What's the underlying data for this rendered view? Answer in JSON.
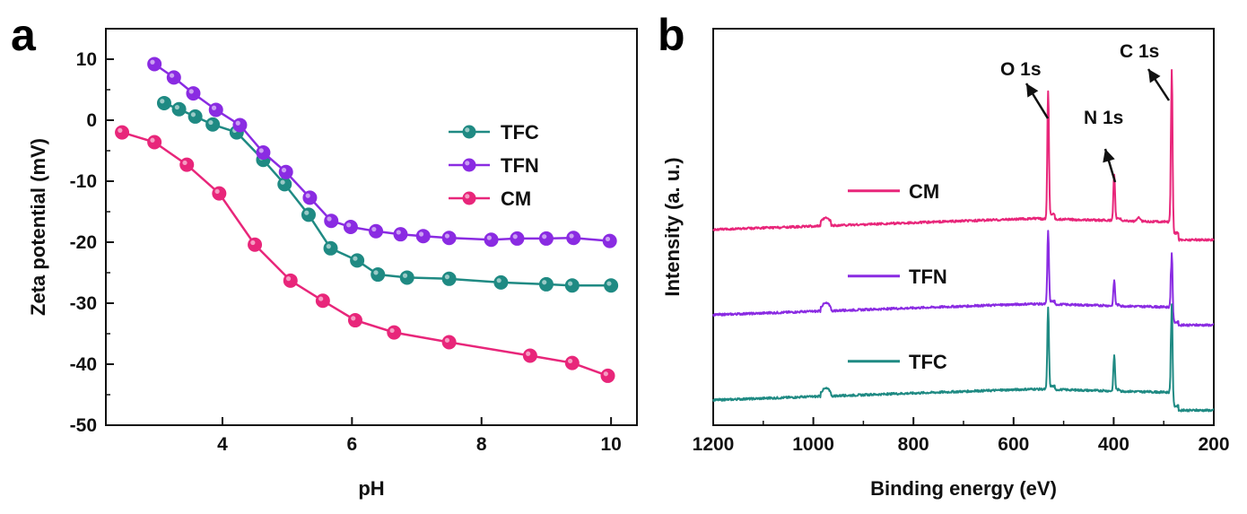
{
  "panels": {
    "a": "a",
    "b": "b"
  },
  "colors": {
    "TFC": "#1f8a83",
    "TFN": "#8a2be2",
    "CM": "#e8267a"
  },
  "chart_data": [
    {
      "type": "line",
      "panel": "a",
      "title": "",
      "xlabel": "pH",
      "ylabel": "Zeta potential (mV)",
      "xlim": [
        2.2,
        10.4
      ],
      "ylim": [
        -50,
        15
      ],
      "xticks": [
        4,
        6,
        8,
        10
      ],
      "yticks": [
        10,
        0,
        -10,
        -20,
        -30,
        -40,
        -50
      ],
      "legend": "right-middle",
      "series": [
        {
          "name": "TFC",
          "x": [
            3.1,
            3.33,
            3.58,
            3.85,
            4.22,
            4.63,
            4.96,
            5.33,
            5.67,
            6.08,
            6.4,
            6.85,
            7.5,
            8.3,
            9.0,
            9.4,
            10.0
          ],
          "y": [
            2.8,
            1.8,
            0.6,
            -0.7,
            -2.0,
            -6.5,
            -10.5,
            -15.5,
            -21.0,
            -23.0,
            -25.3,
            -25.8,
            -26.0,
            -26.6,
            -26.9,
            -27.1,
            -27.1
          ]
        },
        {
          "name": "TFN",
          "x": [
            2.95,
            3.25,
            3.55,
            3.9,
            4.27,
            4.63,
            4.98,
            5.35,
            5.68,
            5.98,
            6.37,
            6.75,
            7.1,
            7.5,
            8.15,
            8.55,
            9.0,
            9.42,
            9.98
          ],
          "y": [
            9.2,
            7.0,
            4.4,
            1.7,
            -0.8,
            -5.3,
            -8.5,
            -12.7,
            -16.5,
            -17.5,
            -18.2,
            -18.7,
            -19.0,
            -19.3,
            -19.6,
            -19.4,
            -19.4,
            -19.3,
            -19.8
          ]
        },
        {
          "name": "CM",
          "x": [
            2.45,
            2.95,
            3.45,
            3.95,
            4.5,
            5.05,
            5.55,
            6.05,
            6.65,
            7.5,
            8.75,
            9.4,
            9.95
          ],
          "y": [
            -2.0,
            -3.6,
            -7.3,
            -12.0,
            -20.4,
            -26.3,
            -29.6,
            -32.8,
            -34.8,
            -36.4,
            -38.6,
            -39.8,
            -41.9
          ]
        }
      ]
    },
    {
      "type": "line",
      "panel": "b",
      "title": "",
      "xlabel": "Binding energy (eV)",
      "ylabel": "Intensity (a. u.)",
      "xlim": [
        1200,
        200
      ],
      "xticks": [
        1200,
        1000,
        800,
        600,
        400,
        200
      ],
      "y_units": "arbitrary (intensity, stacked)",
      "legend": "inline labels left of each spectrum",
      "series": [
        {
          "name": "CM",
          "offset": 2.0,
          "baseline_at_1200": 0.0,
          "baseline_end": -0.12,
          "peaks": [
            {
              "x": 975,
              "h": 0.09
            },
            {
              "x": 531,
              "h": 1.5
            },
            {
              "x": 399,
              "h": 0.55
            },
            {
              "x": 350,
              "h": 0.05
            },
            {
              "x": 284,
              "h": 2.0
            }
          ]
        },
        {
          "name": "TFN",
          "offset": 1.0,
          "baseline_at_1200": 0.0,
          "baseline_end": -0.12,
          "peaks": [
            {
              "x": 975,
              "h": 0.09
            },
            {
              "x": 531,
              "h": 0.85
            },
            {
              "x": 399,
              "h": 0.3
            },
            {
              "x": 284,
              "h": 0.85
            }
          ]
        },
        {
          "name": "TFC",
          "offset": 0.0,
          "baseline_at_1200": 0.0,
          "baseline_end": -0.12,
          "peaks": [
            {
              "x": 975,
              "h": 0.09
            },
            {
              "x": 531,
              "h": 0.95
            },
            {
              "x": 399,
              "h": 0.42
            },
            {
              "x": 284,
              "h": 1.25
            }
          ]
        }
      ],
      "annotations": [
        {
          "text": "O 1s",
          "peak_x": 531
        },
        {
          "text": "N 1s",
          "peak_x": 399
        },
        {
          "text": "C 1s",
          "peak_x": 284
        }
      ]
    }
  ]
}
